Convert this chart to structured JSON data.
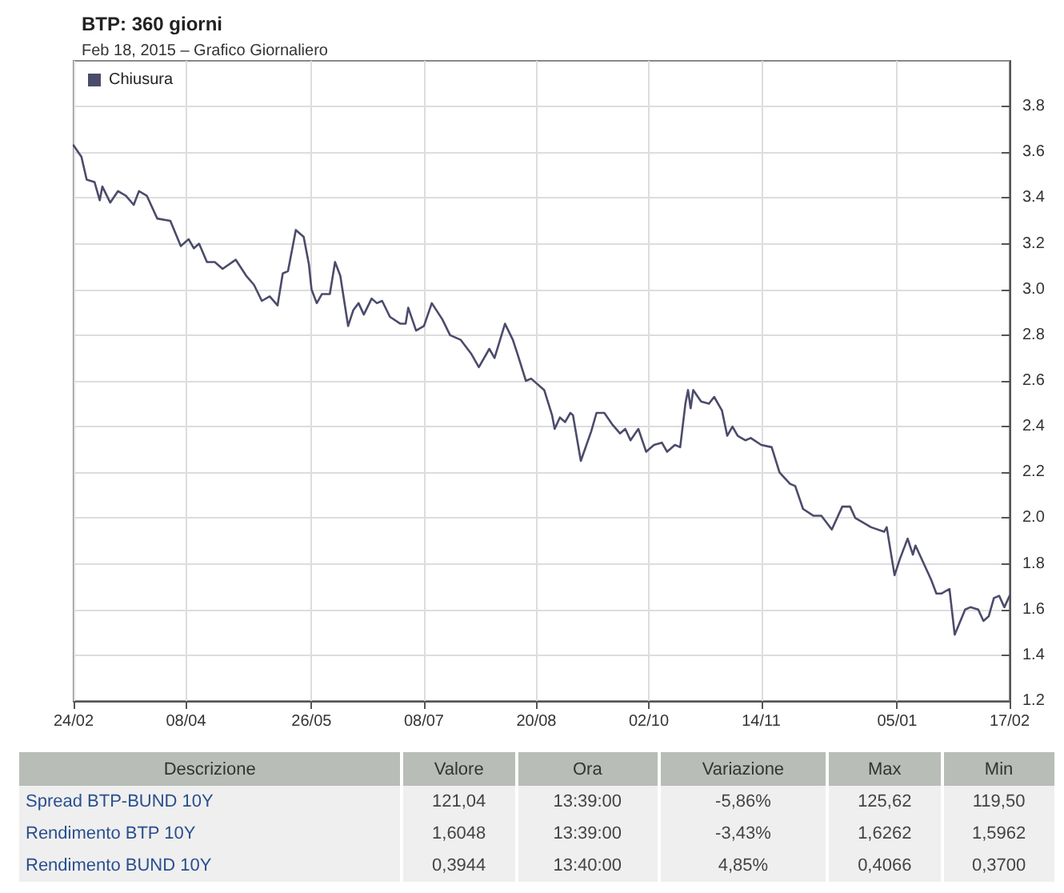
{
  "chart_data": [
    {
      "type": "line",
      "title": "BTP: 360 giorni",
      "subtitle": "Feb 18, 2015 – Grafico Giornaliero",
      "x": [
        "2014-02-24",
        "2014-02-27",
        "2014-03-01",
        "2014-03-04",
        "2014-03-06",
        "2014-03-07",
        "2014-03-10",
        "2014-03-13",
        "2014-03-16",
        "2014-03-19",
        "2014-03-21",
        "2014-03-24",
        "2014-03-28",
        "2014-04-02",
        "2014-04-06",
        "2014-04-09",
        "2014-04-11",
        "2014-04-13",
        "2014-04-16",
        "2014-04-19",
        "2014-04-22",
        "2014-04-27",
        "2014-05-01",
        "2014-05-04",
        "2014-05-07",
        "2014-05-10",
        "2014-05-13",
        "2014-05-15",
        "2014-05-17",
        "2014-05-20",
        "2014-05-23",
        "2014-05-25",
        "2014-05-26",
        "2014-05-28",
        "2014-05-30",
        "2014-06-02",
        "2014-06-04",
        "2014-06-06",
        "2014-06-09",
        "2014-06-11",
        "2014-06-13",
        "2014-06-15",
        "2014-06-18",
        "2014-06-20",
        "2014-06-22",
        "2014-06-25",
        "2014-06-29",
        "2014-07-01",
        "2014-07-02",
        "2014-07-05",
        "2014-07-08",
        "2014-07-11",
        "2014-07-15",
        "2014-07-18",
        "2014-07-22",
        "2014-07-26",
        "2014-07-29",
        "2014-08-02",
        "2014-08-04",
        "2014-08-08",
        "2014-08-11",
        "2014-08-13",
        "2014-08-16",
        "2014-08-18",
        "2014-08-23",
        "2014-08-26",
        "2014-08-27",
        "2014-08-29",
        "2014-08-31",
        "2014-09-02",
        "2014-09-03",
        "2014-09-06",
        "2014-09-10",
        "2014-09-12",
        "2014-09-15",
        "2014-09-18",
        "2014-09-21",
        "2014-09-23",
        "2014-09-25",
        "2014-09-28",
        "2014-10-01",
        "2014-10-04",
        "2014-10-07",
        "2014-10-09",
        "2014-10-12",
        "2014-10-14",
        "2014-10-16",
        "2014-10-17",
        "2014-10-18",
        "2014-10-19",
        "2014-10-22",
        "2014-10-25",
        "2014-10-27",
        "2014-10-30",
        "2014-11-01",
        "2014-11-03",
        "2014-11-05",
        "2014-11-08",
        "2014-11-10",
        "2014-11-14",
        "2014-11-18",
        "2014-11-21",
        "2014-11-25",
        "2014-11-27",
        "2014-11-30",
        "2014-12-04",
        "2014-12-07",
        "2014-12-11",
        "2014-12-15",
        "2014-12-18",
        "2014-12-20",
        "2014-12-26",
        "2014-12-31",
        "2015-01-01",
        "2015-01-04",
        "2015-01-06",
        "2015-01-09",
        "2015-01-11",
        "2015-01-12",
        "2015-01-16",
        "2015-01-18",
        "2015-01-20",
        "2015-01-22",
        "2015-01-25",
        "2015-01-27",
        "2015-01-31",
        "2015-02-02",
        "2015-02-05",
        "2015-02-07",
        "2015-02-09",
        "2015-02-11",
        "2015-02-13",
        "2015-02-15",
        "2015-02-17"
      ],
      "series": [
        {
          "name": "Chiusura",
          "color": "#4b4b6b",
          "values": [
            3.63,
            3.58,
            3.48,
            3.47,
            3.39,
            3.45,
            3.38,
            3.43,
            3.41,
            3.37,
            3.43,
            3.41,
            3.31,
            3.3,
            3.19,
            3.22,
            3.18,
            3.2,
            3.12,
            3.12,
            3.09,
            3.13,
            3.06,
            3.02,
            2.95,
            2.97,
            2.93,
            3.07,
            3.08,
            3.26,
            3.23,
            3.11,
            3.0,
            2.94,
            2.98,
            2.98,
            3.12,
            3.06,
            2.84,
            2.91,
            2.94,
            2.89,
            2.96,
            2.94,
            2.95,
            2.88,
            2.85,
            2.85,
            2.92,
            2.82,
            2.84,
            2.94,
            2.87,
            2.8,
            2.78,
            2.72,
            2.66,
            2.74,
            2.7,
            2.85,
            2.78,
            2.71,
            2.6,
            2.61,
            2.56,
            2.45,
            2.39,
            2.44,
            2.42,
            2.46,
            2.45,
            2.25,
            2.38,
            2.46,
            2.46,
            2.41,
            2.37,
            2.39,
            2.34,
            2.39,
            2.29,
            2.32,
            2.33,
            2.29,
            2.32,
            2.31,
            2.5,
            2.56,
            2.48,
            2.56,
            2.51,
            2.5,
            2.53,
            2.47,
            2.36,
            2.4,
            2.36,
            2.34,
            2.35,
            2.32,
            2.31,
            2.2,
            2.15,
            2.14,
            2.04,
            2.01,
            2.01,
            1.95,
            2.05,
            2.05,
            2.0,
            1.96,
            1.94,
            1.96,
            1.75,
            1.82,
            1.91,
            1.84,
            1.88,
            1.78,
            1.73,
            1.67,
            1.67,
            1.69,
            1.49,
            1.6,
            1.61,
            1.6,
            1.55,
            1.57,
            1.65,
            1.66,
            1.61,
            1.66
          ]
        }
      ],
      "xlim": [
        "2014-02-24",
        "2015-02-17"
      ],
      "xticks": [
        {
          "value": "2014-02-24",
          "label": "24/02"
        },
        {
          "value": "2014-04-08",
          "label": "08/04"
        },
        {
          "value": "2014-05-26",
          "label": "26/05"
        },
        {
          "value": "2014-07-08",
          "label": "08/07"
        },
        {
          "value": "2014-08-20",
          "label": "20/08"
        },
        {
          "value": "2014-10-02",
          "label": "02/10"
        },
        {
          "value": "2014-11-14",
          "label": "14/11"
        },
        {
          "value": "2015-01-05",
          "label": "05/01"
        },
        {
          "value": "2015-02-17",
          "label": "17/02"
        }
      ],
      "ylim": [
        1.2,
        4.0
      ],
      "yticks": [
        1.2,
        1.4,
        1.6,
        1.8,
        {
          "value": 2,
          "label": "2.0"
        },
        2.2,
        2.4,
        2.6,
        2.8,
        {
          "value": 3,
          "label": "3.0"
        },
        3.2,
        3.4,
        3.6,
        3.8
      ],
      "grid": true,
      "legend": "top left",
      "marker": "none",
      "line_style": "solid"
    },
    {
      "type": "other",
      "annotations": [
        "Descrizione",
        "Valore",
        "Ora",
        "Variazione",
        "Max",
        "Min",
        "Spread BTP-BUND 10Y",
        "121,04",
        "13:39:00",
        "-5,86%",
        "125,62",
        "119,50",
        "Rendimento BTP 10Y",
        "1,6048",
        "13:39:00",
        "-3,43%",
        "1,6262",
        "1,5962",
        "Rendimento BUND 10Y",
        "0,3944",
        "13:40:00",
        "4,85%",
        "0,4066",
        "0,3700"
      ]
    }
  ]
}
